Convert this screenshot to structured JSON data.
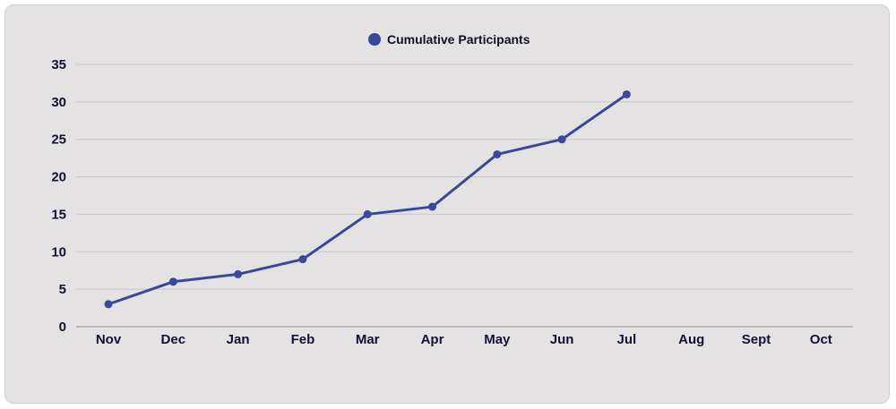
{
  "chart_data": {
    "type": "line",
    "categories": [
      "Nov",
      "Dec",
      "Jan",
      "Feb",
      "Mar",
      "Apr",
      "May",
      "Jun",
      "Jul",
      "Aug",
      "Sept",
      "Oct"
    ],
    "series": [
      {
        "name": "Cumulative Participants",
        "values": [
          3,
          6,
          7,
          9,
          15,
          16,
          23,
          25,
          31,
          null,
          null,
          null
        ]
      }
    ],
    "ylim": [
      0,
      35
    ],
    "yticks": [
      0,
      5,
      10,
      15,
      20,
      25,
      30,
      35
    ],
    "grid": true,
    "legend_position": "top-center",
    "colors": {
      "series": "#3b479b",
      "grid": "#c9c7c8",
      "axis": "#a9a7b0",
      "background": "#e4e2e3",
      "text": "#111133"
    }
  }
}
